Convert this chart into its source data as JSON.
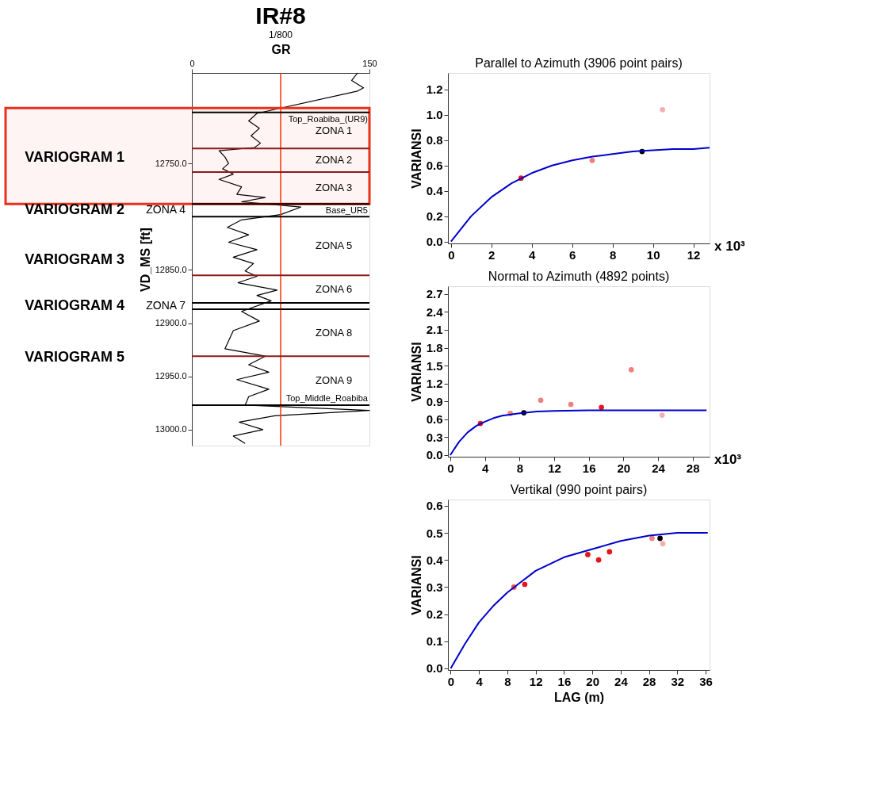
{
  "chart_data": [
    {
      "type": "line",
      "orientation": "horizontal",
      "title": "IR#8",
      "subtitle": "1/800",
      "xlabel": "GR",
      "ylabel": "VD_MS [ft]",
      "xlim": [
        0,
        150
      ],
      "xticks": [
        0,
        150
      ],
      "ylim": [
        13015,
        12665
      ],
      "yticks": [
        {
          "value": 12750,
          "label": "12750.0"
        },
        {
          "value": 12850,
          "label": "12850.0"
        },
        {
          "value": 12900,
          "label": "12900.0"
        },
        {
          "value": 12950,
          "label": "12950.0"
        },
        {
          "value": 13000,
          "label": "13000.0"
        }
      ],
      "series": [
        {
          "color": "#000000",
          "x": [
            12665,
            12672,
            12679,
            12682,
            12703,
            12710,
            12717,
            12724,
            12731,
            12735,
            12738,
            12744,
            12750,
            12755,
            12760,
            12765,
            12772,
            12779,
            12782,
            12786,
            12791,
            12798,
            12803,
            12810,
            12817,
            12824,
            12831,
            12838,
            12844,
            12851,
            12856,
            12862,
            12869,
            12874,
            12879,
            12889,
            12898,
            12907,
            12924,
            12931,
            12939,
            12946,
            12953,
            12962,
            12969,
            12977,
            12982,
            12987,
            12993,
            13000,
            13006,
            13013
          ],
          "values": [
            140,
            135,
            145,
            140,
            55,
            48,
            57,
            50,
            58,
            53,
            23,
            28,
            31,
            26,
            35,
            23,
            42,
            38,
            62,
            42,
            92,
            75,
            42,
            30,
            48,
            31,
            55,
            35,
            52,
            45,
            55,
            39,
            72,
            55,
            67,
            42,
            57,
            35,
            28,
            62,
            48,
            65,
            38,
            65,
            48,
            45,
            150,
            70,
            40,
            60,
            35,
            45
          ]
        }
      ],
      "ref_lines": [
        {
          "axis": "x",
          "value": 75,
          "color": "#ff3300"
        },
        {
          "axis": "y",
          "value": 12702,
          "label": "Top_Roabiba_(UR9)",
          "color": "#000000"
        },
        {
          "axis": "y",
          "value": 12736,
          "color": "#8b1a1a"
        },
        {
          "axis": "y",
          "value": 12758,
          "color": "#8b1a1a"
        },
        {
          "axis": "y",
          "value": 12788,
          "label": "Base_UR5",
          "color": "#000000"
        },
        {
          "axis": "y",
          "value": 12800,
          "color": "#000000"
        },
        {
          "axis": "y",
          "value": 12855,
          "color": "#8b1a1a"
        },
        {
          "axis": "y",
          "value": 12881,
          "color": "#000000"
        },
        {
          "axis": "y",
          "value": 12887,
          "color": "#000000"
        },
        {
          "axis": "y",
          "value": 12931,
          "color": "#8b1a1a"
        },
        {
          "axis": "y",
          "value": 12977,
          "label": "Top_Middle_Roabiba",
          "color": "#000000"
        }
      ],
      "bands": [
        {
          "axis": "y",
          "from": 12698,
          "to": 12788,
          "color": "#e8311a"
        }
      ],
      "annotations": [
        "ZONA 1",
        "ZONA 2",
        "ZONA 3",
        "ZONA 4",
        "ZONA 5",
        "ZONA 6",
        "ZONA 7",
        "ZONA 8",
        "ZONA 9",
        "VARIOGRAM 1",
        "VARIOGRAM 2",
        "VARIOGRAM 3",
        "VARIOGRAM 4",
        "VARIOGRAM 5"
      ]
    },
    {
      "type": "scatter",
      "title": "Parallel to Azimuth (3906 point pairs)",
      "ylabel": "VARIANSI",
      "marker": "circle",
      "xlim": [
        -0.15,
        12.8
      ],
      "xticks": [
        0,
        2,
        4,
        6,
        8,
        10,
        12
      ],
      "ylim": [
        -0.015,
        1.33
      ],
      "yticks": [
        {
          "value": 0,
          "label": "0.0"
        },
        0.2,
        0.4,
        0.6,
        0.8,
        {
          "value": 1,
          "label": "1.0"
        },
        1.2
      ],
      "series": [
        {
          "type": "scatter",
          "x": [
            3.47,
            6.99,
            9.46,
            10.47
          ],
          "values": [
            0.5,
            0.64,
            0.71,
            1.04
          ],
          "colors": [
            "#e8141c",
            "#f08080",
            "#000000",
            "#f4b0b0"
          ]
        },
        {
          "type": "line",
          "marker": "none",
          "color": "#0000cc",
          "x": [
            0,
            1,
            2,
            3,
            4,
            5,
            6,
            7,
            8,
            9,
            10,
            11,
            12,
            12.8
          ],
          "values": [
            0,
            0.2,
            0.35,
            0.46,
            0.54,
            0.6,
            0.64,
            0.67,
            0.69,
            0.71,
            0.72,
            0.73,
            0.73,
            0.74
          ]
        }
      ],
      "annotations": [
        "x 10³"
      ]
    },
    {
      "type": "scatter",
      "title": "Normal to Azimuth (4892 points)",
      "ylabel": "VARIANSI",
      "marker": "circle",
      "xlim": [
        -0.27,
        29.95
      ],
      "xticks": [
        0,
        4,
        8,
        12,
        16,
        20,
        24,
        28
      ],
      "ylim": [
        -0.027,
        2.83
      ],
      "yticks": [
        {
          "value": 0,
          "label": "0.0"
        },
        0.3,
        0.6,
        0.9,
        1.2,
        1.5,
        1.8,
        2.1,
        2.4,
        2.7
      ],
      "series": [
        {
          "type": "scatter",
          "x": [
            3.48,
            6.93,
            8.5,
            10.45,
            13.93,
            17.46,
            20.91,
            24.47
          ],
          "values": [
            0.53,
            0.7,
            0.71,
            0.92,
            0.85,
            0.8,
            1.43,
            0.67
          ],
          "colors": [
            "#e8141c",
            "#f08080",
            "#000000",
            "#f08080",
            "#f08080",
            "#e8141c",
            "#f08080",
            "#f4b0b0"
          ]
        },
        {
          "type": "line",
          "marker": "none",
          "color": "#0000cc",
          "x": [
            0,
            1,
            2,
            3,
            4,
            5,
            6,
            8,
            10,
            12,
            16,
            20,
            25,
            29.6
          ],
          "values": [
            0,
            0.22,
            0.38,
            0.49,
            0.56,
            0.62,
            0.66,
            0.7,
            0.73,
            0.74,
            0.75,
            0.75,
            0.75,
            0.75
          ]
        }
      ],
      "annotations": [
        "x10³"
      ]
    },
    {
      "type": "scatter",
      "title": "Vertikal (990 point pairs)",
      "xlabel": "LAG (m)",
      "ylabel": "VARIANSI",
      "marker": "circle",
      "xlim": [
        -0.39,
        36.55
      ],
      "xticks": [
        0,
        4,
        8,
        12,
        16,
        20,
        24,
        28,
        32,
        36
      ],
      "ylim": [
        -0.006,
        0.623
      ],
      "yticks": [
        {
          "value": 0,
          "label": "0.0"
        },
        0.1,
        0.2,
        0.3,
        0.4,
        0.5,
        0.6
      ],
      "series": [
        {
          "type": "scatter",
          "x": [
            8.93,
            10.46,
            19.36,
            20.89,
            22.42,
            28.43,
            29.56,
            29.95
          ],
          "values": [
            0.3,
            0.31,
            0.42,
            0.4,
            0.43,
            0.48,
            0.48,
            0.46
          ],
          "colors": [
            "#f05050",
            "#e8141c",
            "#e8141c",
            "#e8141c",
            "#e8141c",
            "#f08080",
            "#000000",
            "#f4b0b0"
          ]
        },
        {
          "type": "line",
          "marker": "none",
          "color": "#0000cc",
          "x": [
            0,
            2,
            4,
            6,
            8,
            10,
            12,
            16,
            20,
            24,
            28,
            32,
            36.3
          ],
          "values": [
            0,
            0.09,
            0.17,
            0.23,
            0.28,
            0.32,
            0.36,
            0.41,
            0.44,
            0.47,
            0.49,
            0.5,
            0.5
          ]
        }
      ]
    }
  ]
}
